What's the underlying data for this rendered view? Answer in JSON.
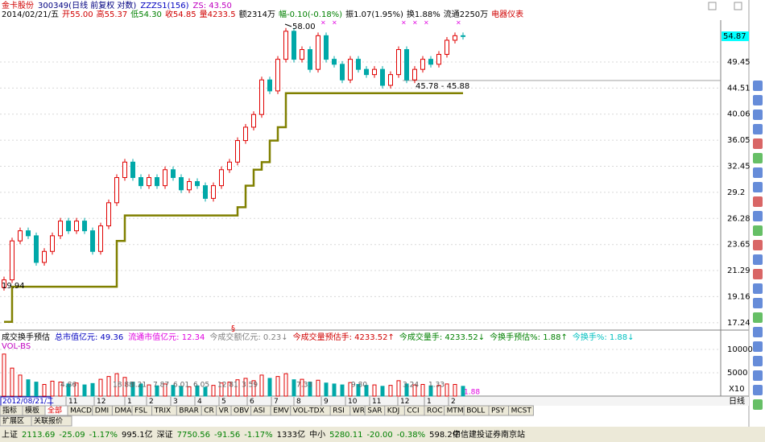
{
  "header": {
    "line1": [
      {
        "text": "金卡股份",
        "color": "#d00000"
      },
      {
        "text": "300349(日线 前复权 对数)",
        "color": "#000080"
      },
      {
        "text": "ZZZS1(156)",
        "color": "#0000c0"
      },
      {
        "text": "ZS: 43.50",
        "color": "#c000c0"
      }
    ],
    "line2": [
      {
        "text": "2014/02/21/五",
        "color": "#000000"
      },
      {
        "text": "开55.00",
        "color": "#d00000"
      },
      {
        "text": "高55.37",
        "color": "#d00000"
      },
      {
        "text": "低54.30",
        "color": "#008000"
      },
      {
        "text": "收54.85",
        "color": "#d00000"
      },
      {
        "text": "量4233.5",
        "color": "#d00000"
      },
      {
        "text": "额2314万",
        "color": "#000000"
      },
      {
        "text": "幅-0.10(-0.18%)",
        "color": "#008000"
      },
      {
        "text": "振1.07(1.95%)",
        "color": "#000000"
      },
      {
        "text": "换1.88%",
        "color": "#000000"
      },
      {
        "text": "流通2250万",
        "color": "#000000"
      },
      {
        "text": "电器仪表",
        "color": "#d00000"
      }
    ]
  },
  "chart_data": {
    "type": "price",
    "log_scale": true,
    "ylim": [
      17.01,
      58.57
    ],
    "yticks": [
      49.45,
      44.51,
      40.06,
      36.05,
      32.45,
      29.2,
      {
        "value": 26.28,
        "label": "26.28"
      },
      23.65,
      21.29,
      19.16,
      17.24
    ],
    "last_price": 54.87,
    "series": [
      {
        "name": "close",
        "values": [
          20.5,
          24,
          25,
          24.5,
          22,
          23,
          24.5,
          26,
          25,
          26,
          25,
          23,
          25.5,
          28,
          31,
          33,
          31,
          30,
          31,
          30,
          32,
          31,
          29.5,
          30.5,
          30,
          28.5,
          30,
          32,
          33,
          36,
          38,
          40,
          46,
          44,
          50,
          56,
          50,
          52,
          48,
          55,
          50,
          49,
          46,
          50,
          48,
          47,
          48,
          45,
          47,
          52,
          46,
          48,
          50,
          49,
          51,
          54,
          55,
          54.85
        ]
      },
      {
        "name": "ZZZS1",
        "color": "#808000",
        "values": [
          17.3,
          19.94,
          19.94,
          19.94,
          19.94,
          19.94,
          19.94,
          19.94,
          19.94,
          19.94,
          19.94,
          19.94,
          19.94,
          19.94,
          24,
          26.6,
          26.6,
          26.6,
          26.6,
          26.6,
          26.6,
          26.6,
          26.6,
          26.6,
          26.6,
          26.6,
          26.6,
          26.6,
          26.6,
          27.5,
          30,
          32,
          33,
          36,
          38,
          43.6,
          43.6,
          43.6,
          43.6,
          43.6,
          43.6,
          43.6,
          43.6,
          43.6,
          43.6,
          43.6,
          43.6,
          43.6,
          43.6,
          43.6,
          43.6,
          43.6,
          43.6,
          43.6,
          43.6,
          43.6,
          43.6,
          43.6
        ]
      }
    ],
    "annotations": [
      "58.00",
      "19.94",
      "45.78 - 45.88",
      "§"
    ]
  },
  "volume": {
    "header": [
      {
        "text": "成交换手预估",
        "color": "#000000"
      },
      {
        "text": "总市值亿元: 49.36",
        "color": "#0000c0"
      },
      {
        "text": "流通市值亿元: 12.34",
        "color": "#e000e0"
      },
      {
        "text": "今成交额亿元: 0.23↓",
        "color": "#808080"
      },
      {
        "text": "今成交量预估手: 4233.52↑",
        "color": "#d00000"
      },
      {
        "text": "今成交量手: 4233.52↓",
        "color": "#008000"
      },
      {
        "text": "今换手预估%: 1.88↑",
        "color": "#008000"
      },
      {
        "text": "今换手%: 1.88↓",
        "color": "#00c0c0"
      }
    ],
    "name": "VOL-BS",
    "ylim": [
      0,
      11550
    ],
    "yticks": [
      10000,
      5000
    ],
    "unit": "X10",
    "values": [
      9000,
      6000,
      4500,
      3500,
      3000,
      2500,
      3200,
      3000,
      2600,
      2800,
      2400,
      2700,
      3600,
      4200,
      4800,
      4000,
      3000,
      2600,
      2400,
      2200,
      2600,
      2300,
      2100,
      2000,
      2200,
      1900,
      2300,
      2800,
      3000,
      3500,
      3800,
      3300,
      4500,
      3800,
      4200,
      4800,
      3500,
      3600,
      3000,
      3400,
      2800,
      2600,
      2400,
      2900,
      2500,
      2300,
      2400,
      2100,
      2300,
      3300,
      2600,
      2400,
      2500,
      2200,
      2300,
      2600,
      2500,
      2100
    ],
    "labels": [
      "4.86",
      "18.88",
      "3.21",
      "7.87",
      "6.01",
      "6.05",
      "12.81",
      "3.59",
      "7.33",
      "9.80",
      "3.24",
      "1.33",
      "1.88"
    ]
  },
  "date_axis": {
    "current": "2012/08/21/二",
    "months": [
      "11",
      "12",
      "1",
      "2",
      "3",
      "4",
      "5",
      "6",
      "7",
      "8",
      "9",
      "10",
      "11",
      "12",
      "1",
      "2"
    ],
    "period": "日线"
  },
  "tabs": [
    "指标",
    "模板",
    "全部",
    "MACD",
    "DMI",
    "DMA",
    "FSL",
    "TRIX",
    "BRAR",
    "CR",
    "VR",
    "OBV",
    "ASI",
    "EMV",
    "VOL-TDX",
    "RSI",
    "WR",
    "SAR",
    "KDJ",
    "CCI",
    "ROC",
    "MTM",
    "BOLL",
    "PSY",
    "MCST"
  ],
  "tabs2": [
    "扩展区",
    "关联报价"
  ],
  "status": [
    {
      "text": "上证",
      "color": "#000000"
    },
    {
      "text": "2113.69",
      "color": "#008000"
    },
    {
      "text": "-25.09",
      "color": "#008000"
    },
    {
      "text": "-1.17%",
      "color": "#008000"
    },
    {
      "text": "995.1亿",
      "color": "#000000"
    },
    {
      "text": "深证",
      "color": "#000000"
    },
    {
      "text": "7750.56",
      "color": "#008000"
    },
    {
      "text": "-91.56",
      "color": "#008000"
    },
    {
      "text": "-1.17%",
      "color": "#008000"
    },
    {
      "text": "1333亿",
      "color": "#000000"
    },
    {
      "text": "中小",
      "color": "#000000"
    },
    {
      "text": "5280.11",
      "color": "#008000"
    },
    {
      "text": "-20.00",
      "color": "#008000"
    },
    {
      "text": "-0.38%",
      "color": "#008000"
    },
    {
      "text": "598.2亿",
      "color": "#000000"
    }
  ],
  "broker": "中信建投证券南京站"
}
